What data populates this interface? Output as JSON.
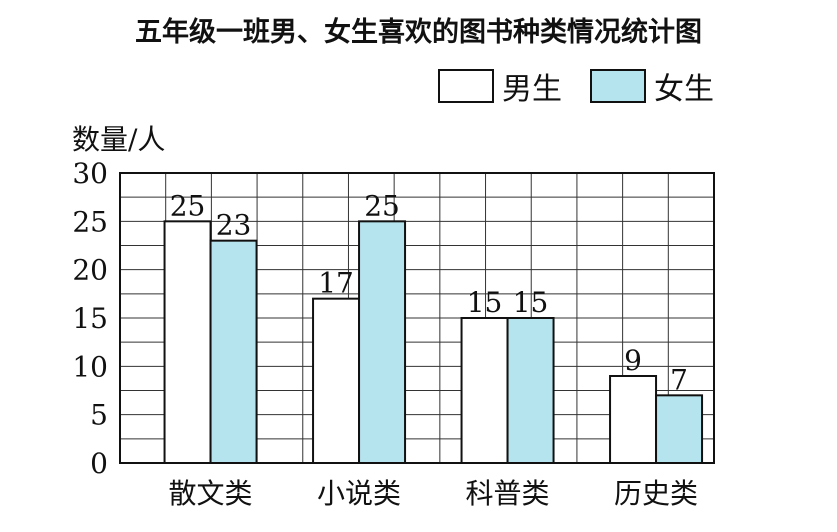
{
  "chart_data": {
    "type": "bar",
    "title": "五年级一班男、女生喜欢的图书种类情况统计图",
    "ylabel": "数量/人",
    "xlabel": "",
    "categories": [
      "散文类",
      "小说类",
      "科普类",
      "历史类"
    ],
    "series": [
      {
        "name": "男生",
        "values": [
          25,
          17,
          15,
          9
        ],
        "color": "#ffffff"
      },
      {
        "name": "女生",
        "values": [
          23,
          25,
          15,
          7
        ],
        "color": "#b6e4ee"
      }
    ],
    "ylim": [
      0,
      30
    ],
    "yticks": [
      0,
      5,
      10,
      15,
      20,
      25,
      30
    ],
    "grid": true,
    "legend": "top-right"
  }
}
